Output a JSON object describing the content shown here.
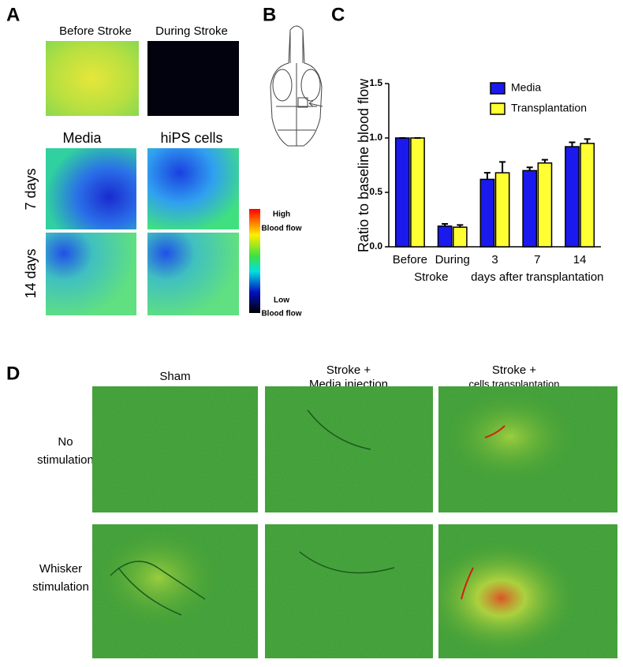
{
  "panels": {
    "a": {
      "letter": "A",
      "top_labels": [
        "Before Stroke",
        "During Stroke"
      ],
      "col_labels": [
        "Media",
        "hiPS cells"
      ],
      "row_labels": [
        "7 days",
        "14 days"
      ],
      "scale_high": [
        "High",
        "Blood flow"
      ],
      "scale_low": [
        "Low",
        "Blood flow"
      ]
    },
    "b": {
      "letter": "B"
    },
    "c": {
      "letter": "C"
    },
    "d": {
      "letter": "D",
      "col_labels": [
        [
          "Sham"
        ],
        [
          "Stroke +",
          "Media injection"
        ],
        [
          "Stroke +",
          "cells transplantation"
        ]
      ],
      "row_labels": [
        [
          "No",
          "stimulation"
        ],
        [
          "Whisker",
          "stimulation"
        ]
      ]
    }
  },
  "chart_data": {
    "type": "bar",
    "y_label": "Ratio to baseline blood flow",
    "categories": [
      "Before",
      "During",
      "3",
      "7",
      "14"
    ],
    "group_labels": [
      "Stroke",
      "days after transplantation"
    ],
    "series": [
      {
        "name": "Media",
        "color": "#1a1aee",
        "values": [
          1.0,
          0.19,
          0.62,
          0.7,
          0.92
        ],
        "errors": [
          0,
          0.02,
          0.06,
          0.03,
          0.04
        ]
      },
      {
        "name": "Transplantation",
        "color": "#ffff33",
        "values": [
          1.0,
          0.18,
          0.68,
          0.77,
          0.95
        ],
        "errors": [
          0,
          0.02,
          0.1,
          0.03,
          0.04
        ]
      }
    ],
    "ylim": [
      0,
      1.5
    ],
    "yticks": [
      {
        "value": 0,
        "label": "0.0"
      },
      {
        "value": 0.5,
        "label": "0.5"
      },
      {
        "value": 1,
        "label": "1.0"
      },
      {
        "value": 1.5,
        "label": "1.5"
      }
    ],
    "legend": "upper right",
    "grid": false
  }
}
